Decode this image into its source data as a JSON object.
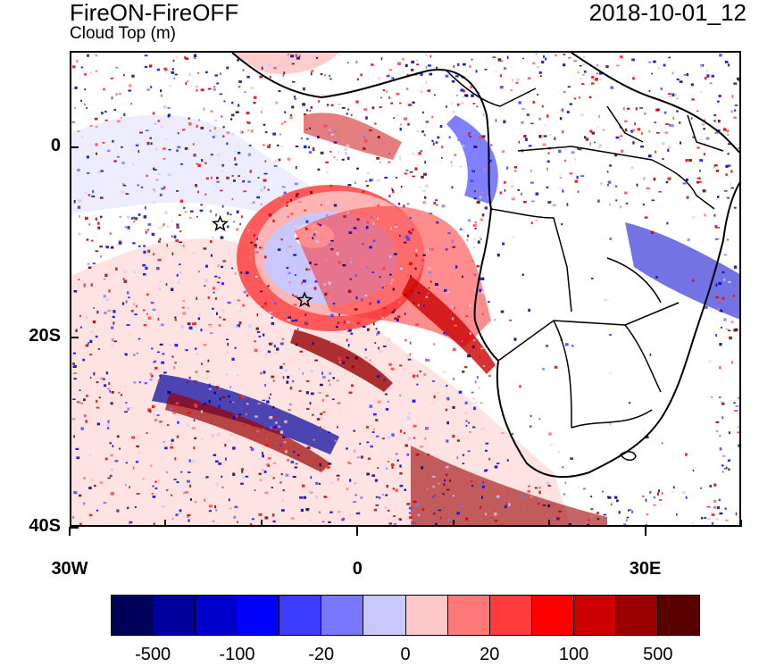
{
  "title_left": "FireON-FireOFF",
  "subtitle_left": "Cloud Top (m)",
  "title_right": "2018-10-01_12",
  "axes": {
    "y_ticks": [
      {
        "label": "0",
        "lat": 0
      },
      {
        "label": "20S",
        "lat": -20
      },
      {
        "label": "40S",
        "lat": -40
      }
    ],
    "x_ticks": [
      {
        "label": "30W",
        "lon": -30
      },
      {
        "label": "0",
        "lon": 0
      },
      {
        "label": "30E",
        "lon": 30
      }
    ],
    "lon_range": [
      -30,
      40
    ],
    "lat_range": [
      -40,
      10
    ]
  },
  "colorbar": {
    "colors": [
      "#00005a",
      "#00009a",
      "#0000cd",
      "#0000ff",
      "#3c3cff",
      "#7878ff",
      "#c8c8ff",
      "#ffc8c8",
      "#ff7878",
      "#ff3c3c",
      "#ff0000",
      "#cd0000",
      "#9a0000",
      "#5a0000"
    ],
    "labels": [
      {
        "text": "-500",
        "after_box": 1
      },
      {
        "text": "-100",
        "after_box": 3
      },
      {
        "text": "-20",
        "after_box": 5
      },
      {
        "text": "0",
        "after_box": 7
      },
      {
        "text": "20",
        "after_box": 9
      },
      {
        "text": "100",
        "after_box": 11
      },
      {
        "text": "500",
        "after_box": 13
      }
    ]
  },
  "markers": [
    {
      "symbol": "star",
      "lon": -14.5,
      "lat": -8
    },
    {
      "symbol": "star",
      "lon": -5.7,
      "lat": -16
    }
  ]
}
